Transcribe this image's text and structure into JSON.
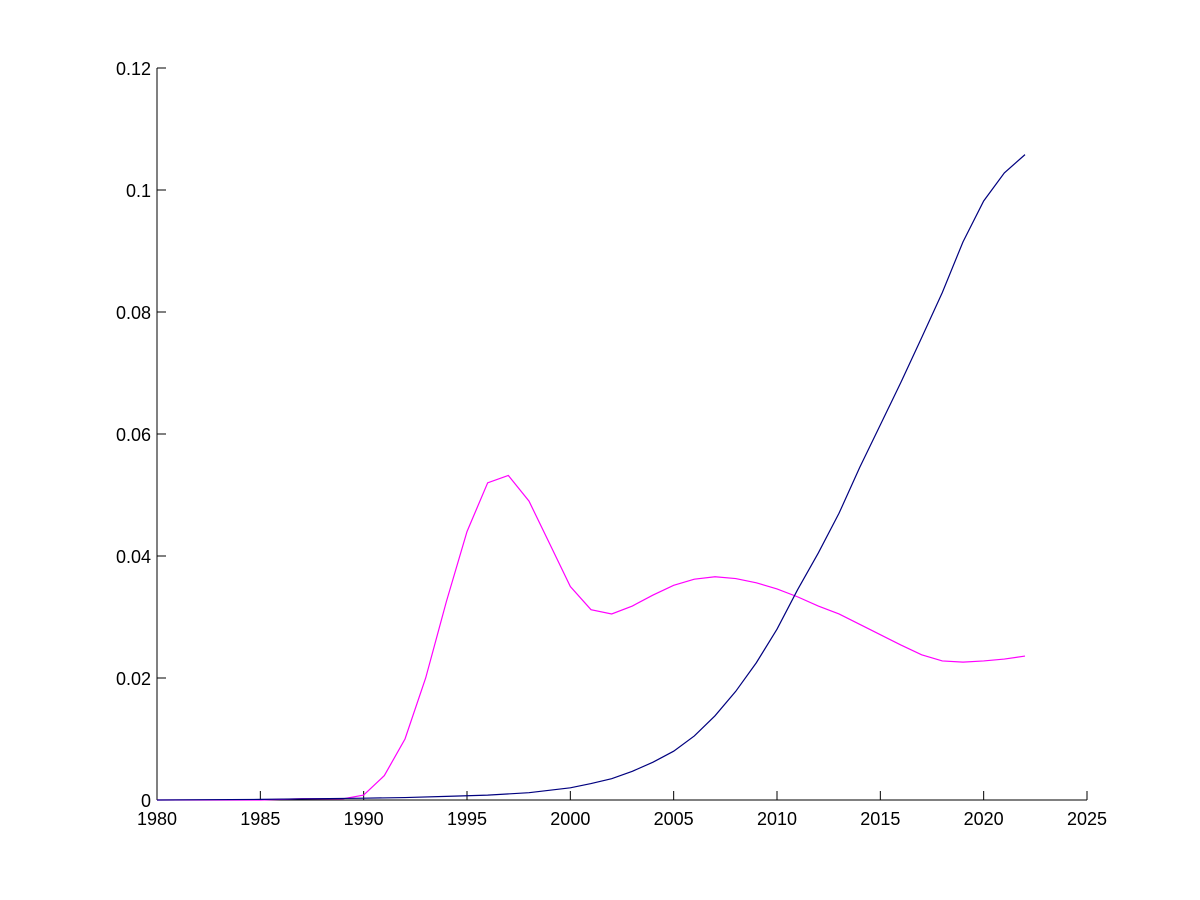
{
  "chart_data": {
    "type": "line",
    "title": "",
    "xlabel": "",
    "ylabel": "",
    "xlim": [
      1980,
      2025
    ],
    "ylim": [
      0,
      0.12
    ],
    "x_ticks": [
      1980,
      1985,
      1990,
      1995,
      2000,
      2005,
      2010,
      2015,
      2020,
      2025
    ],
    "y_ticks": [
      0,
      0.02,
      0.04,
      0.06,
      0.08,
      0.1,
      0.12
    ],
    "x_tick_labels": [
      "1980",
      "1985",
      "1990",
      "1995",
      "2000",
      "2005",
      "2010",
      "2015",
      "2020",
      "2025"
    ],
    "y_tick_labels": [
      "0",
      "0.02",
      "0.04",
      "0.06",
      "0.08",
      "0.1",
      "0.12"
    ],
    "grid": false,
    "legend": "none",
    "series": [
      {
        "color": "#ff00ff",
        "x": [
          1980,
          1985,
          1987,
          1989,
          1990,
          1991,
          1992,
          1993,
          1994,
          1995,
          1996,
          1997,
          1998,
          1999,
          2000,
          2001,
          2002,
          2003,
          2004,
          2005,
          2006,
          2007,
          2008,
          2009,
          2010,
          2011,
          2012,
          2013,
          2014,
          2015,
          2016,
          2017,
          2018,
          2019,
          2020,
          2021,
          2022
        ],
        "values": [
          0,
          0,
          0.0002,
          0.0002,
          0.0008,
          0.004,
          0.01,
          0.02,
          0.0325,
          0.044,
          0.052,
          0.0532,
          0.049,
          0.042,
          0.035,
          0.0312,
          0.0305,
          0.0318,
          0.0336,
          0.0352,
          0.0362,
          0.0366,
          0.0363,
          0.0356,
          0.0346,
          0.0333,
          0.0318,
          0.0305,
          0.0288,
          0.0271,
          0.0254,
          0.0238,
          0.0228,
          0.0226,
          0.0228,
          0.0231,
          0.0236
        ]
      },
      {
        "color": "#00007f",
        "x": [
          1980,
          1985,
          1990,
          1992,
          1994,
          1996,
          1998,
          2000,
          2001,
          2002,
          2003,
          2004,
          2005,
          2006,
          2007,
          2008,
          2009,
          2010,
          2011,
          2012,
          2013,
          2014,
          2015,
          2016,
          2017,
          2018,
          2019,
          2020,
          2021,
          2022
        ],
        "values": [
          0,
          0.0001,
          0.0003,
          0.0004,
          0.0006,
          0.0008,
          0.0012,
          0.002,
          0.0027,
          0.0035,
          0.0047,
          0.0062,
          0.008,
          0.0105,
          0.0138,
          0.0178,
          0.0225,
          0.028,
          0.0345,
          0.0405,
          0.047,
          0.0545,
          0.0615,
          0.0685,
          0.0758,
          0.0832,
          0.0915,
          0.0982,
          0.1028,
          0.1058
        ]
      }
    ]
  }
}
